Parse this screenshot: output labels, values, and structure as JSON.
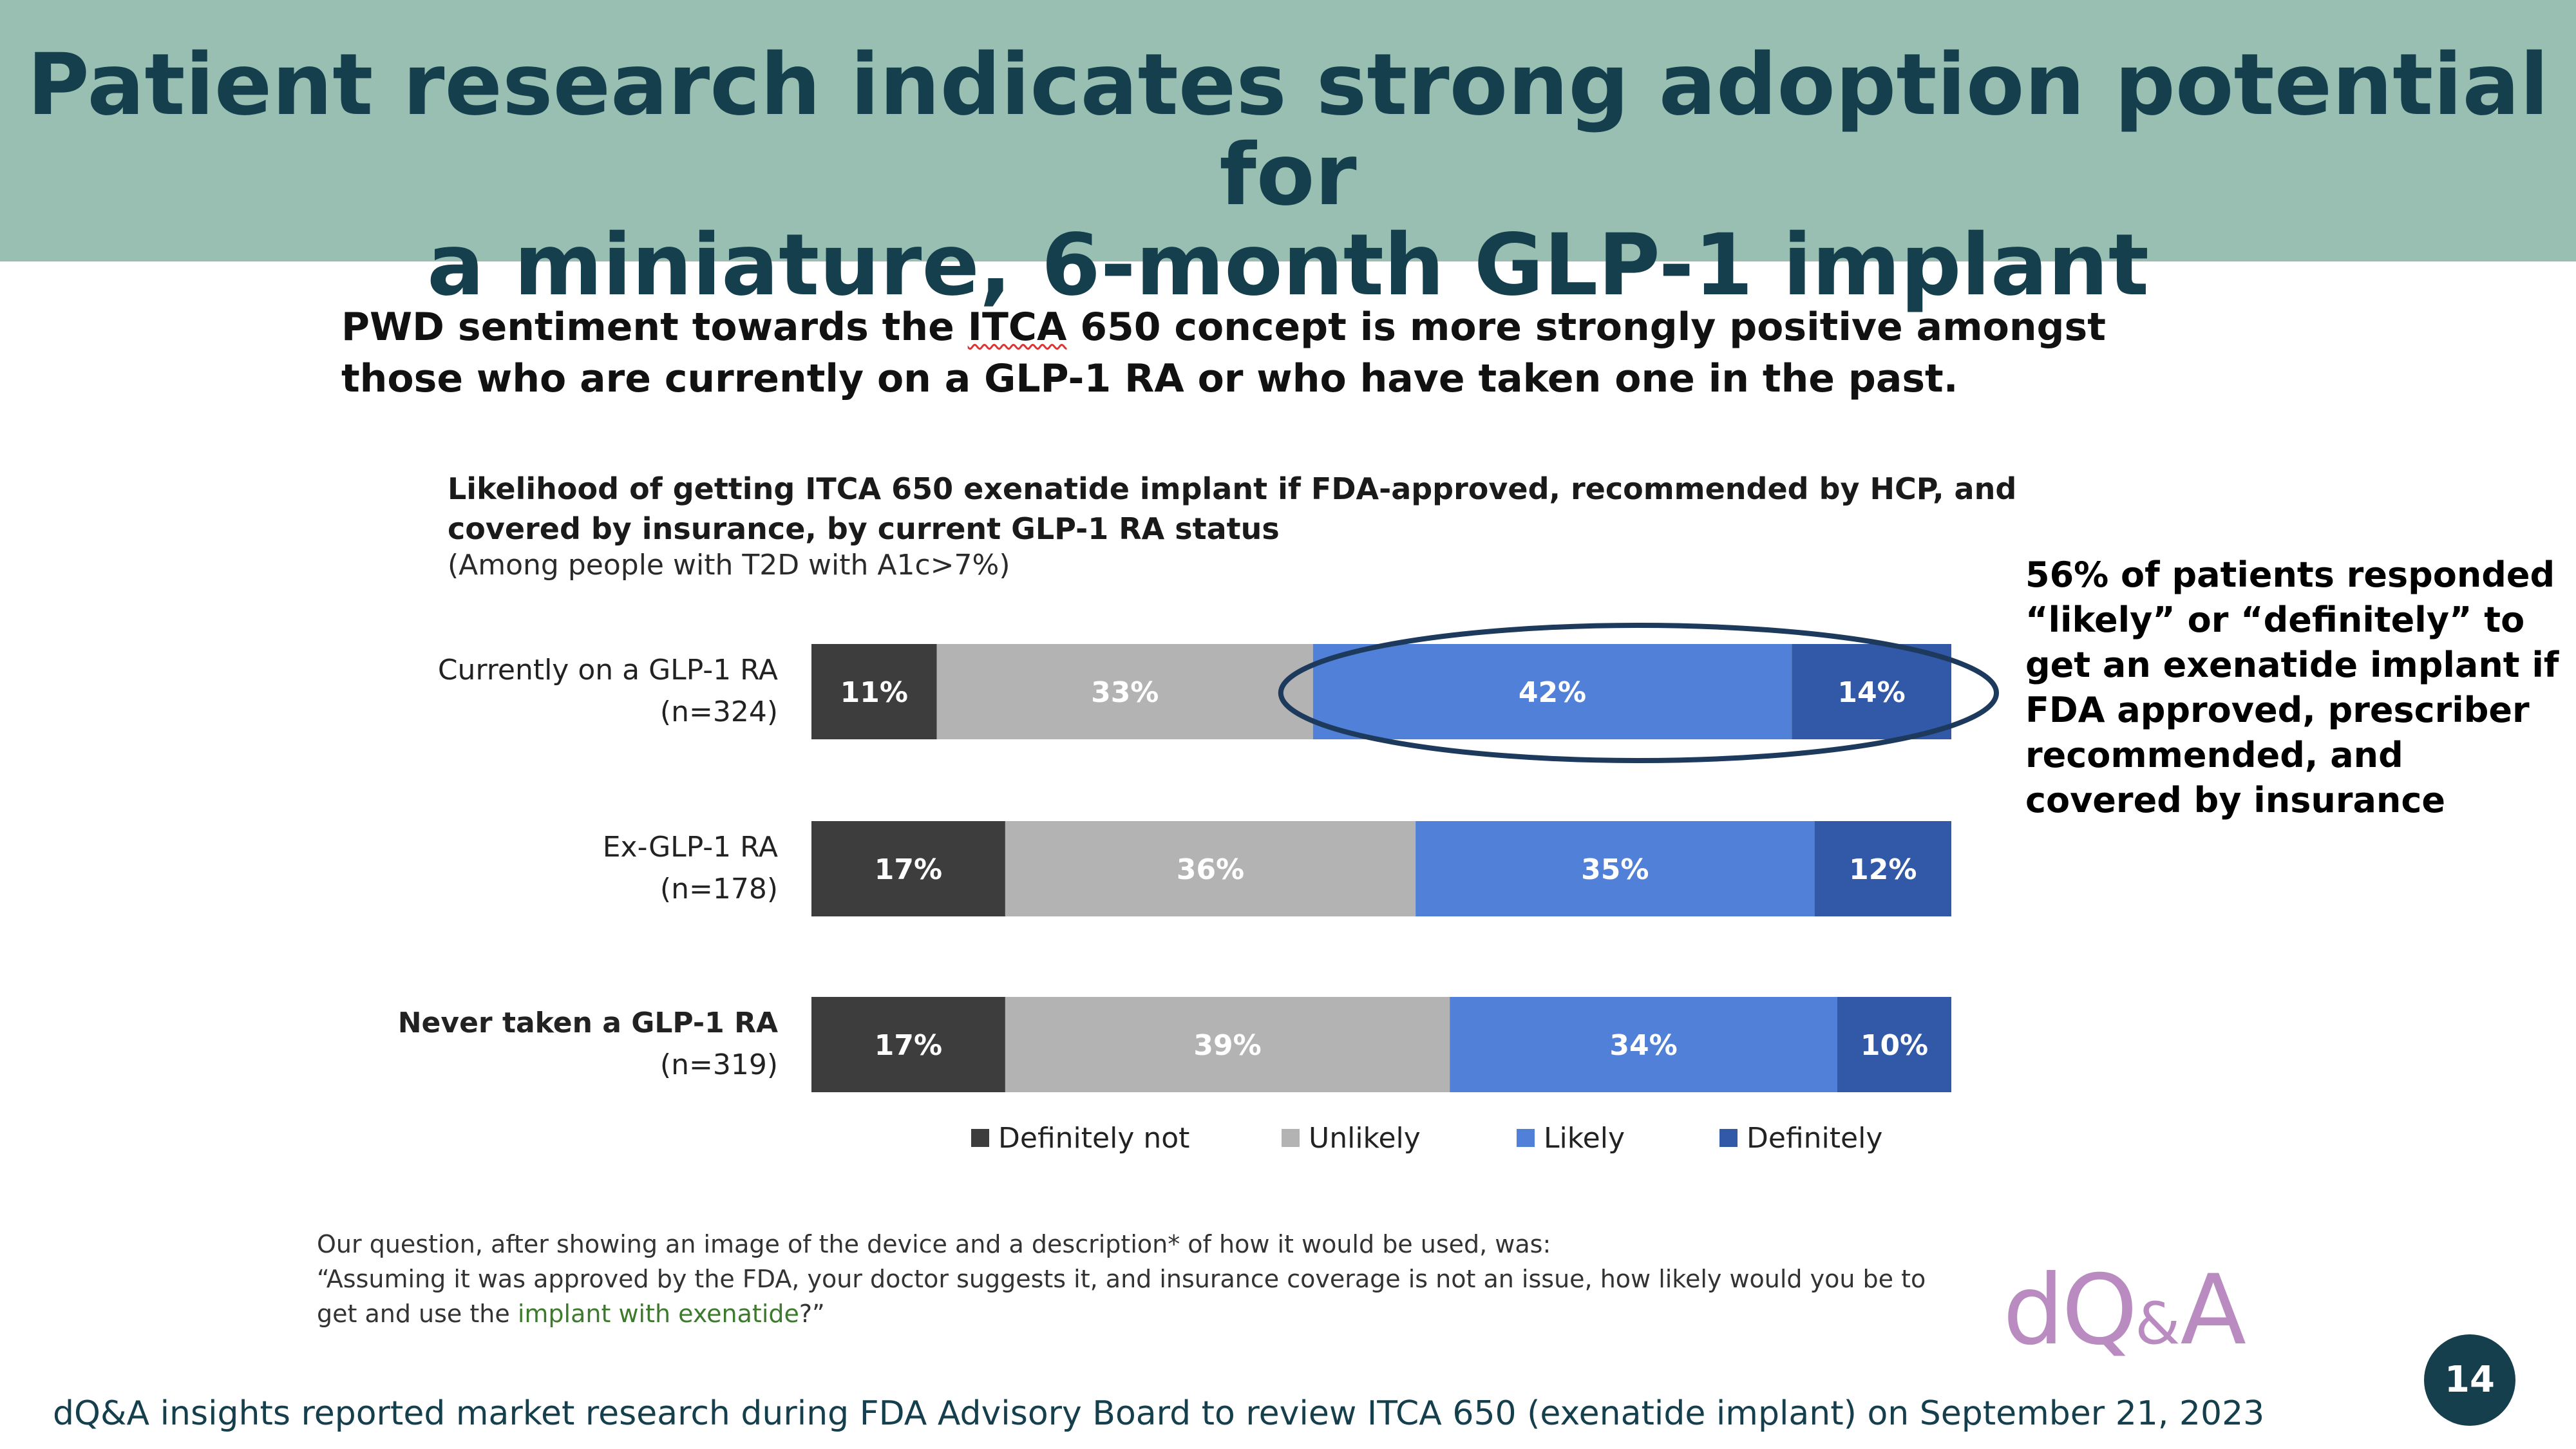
{
  "header": {
    "title_line1": "Patient research indicates strong adoption potential for",
    "title_line2": "a miniature, 6-month GLP-1 implant",
    "background": "#99bfb3",
    "title_color": "#153f4c"
  },
  "subtitle": {
    "part1": "PWD sentiment towards the ",
    "emph": "ITCA",
    "part2": " 650 concept is more strongly positive amongst those who are currently on a GLP-1 RA or who have taken one in the past."
  },
  "chart_data": {
    "type": "bar",
    "orientation": "horizontal",
    "stacked": true,
    "title": "Likelihood of getting ITCA 650 exenatide implant if FDA-approved, recommended by HCP, and covered by insurance, by current GLP-1 RA status",
    "subtitle": "(Among people with T2D with A1c>7%)",
    "categories": [
      {
        "label": "Currently on a GLP-1 RA",
        "n": "(n=324)"
      },
      {
        "label": "Ex-GLP-1 RA",
        "n": "(n=178)"
      },
      {
        "label": "Never taken a GLP-1 RA",
        "n": "(n=319)"
      }
    ],
    "series": [
      {
        "name": "Definitely not",
        "color": "#3d3d3d",
        "values": [
          11,
          17,
          17
        ]
      },
      {
        "name": "Unlikely",
        "color": "#b3b3b3",
        "values": [
          33,
          36,
          39
        ]
      },
      {
        "name": "Likely",
        "color": "#5080d8",
        "values": [
          42,
          35,
          34
        ]
      },
      {
        "name": "Definitely",
        "color": "#3159a8",
        "values": [
          14,
          12,
          10
        ]
      }
    ],
    "unit": "%",
    "xlim": [
      0,
      100
    ],
    "legend_position": "bottom",
    "highlight": {
      "category_index": 0,
      "series": [
        "Likely",
        "Definitely"
      ],
      "shape": "ellipse",
      "color": "#1d3a5c"
    }
  },
  "callout": "56% of patients responded “likely” or “definitely” to get an exenatide implant if FDA approved, prescriber recommended, and covered by insurance",
  "footnote": {
    "line1": "Our question, after showing an image of the device and a description* of how it would be used, was:",
    "line2": "“Assuming it was approved by the FDA, your doctor suggests it, and insurance coverage is not an issue, how likely would you be to get and use the ",
    "green": "implant with exenatide",
    "line2_end": "?”"
  },
  "logo": {
    "part1": "dQ",
    "amp": "&",
    "part2": "A"
  },
  "page_number": "14",
  "source": "dQ&A insights reported market research during FDA Advisory Board to review ITCA 650 (exenatide implant) on September 21, 2023"
}
